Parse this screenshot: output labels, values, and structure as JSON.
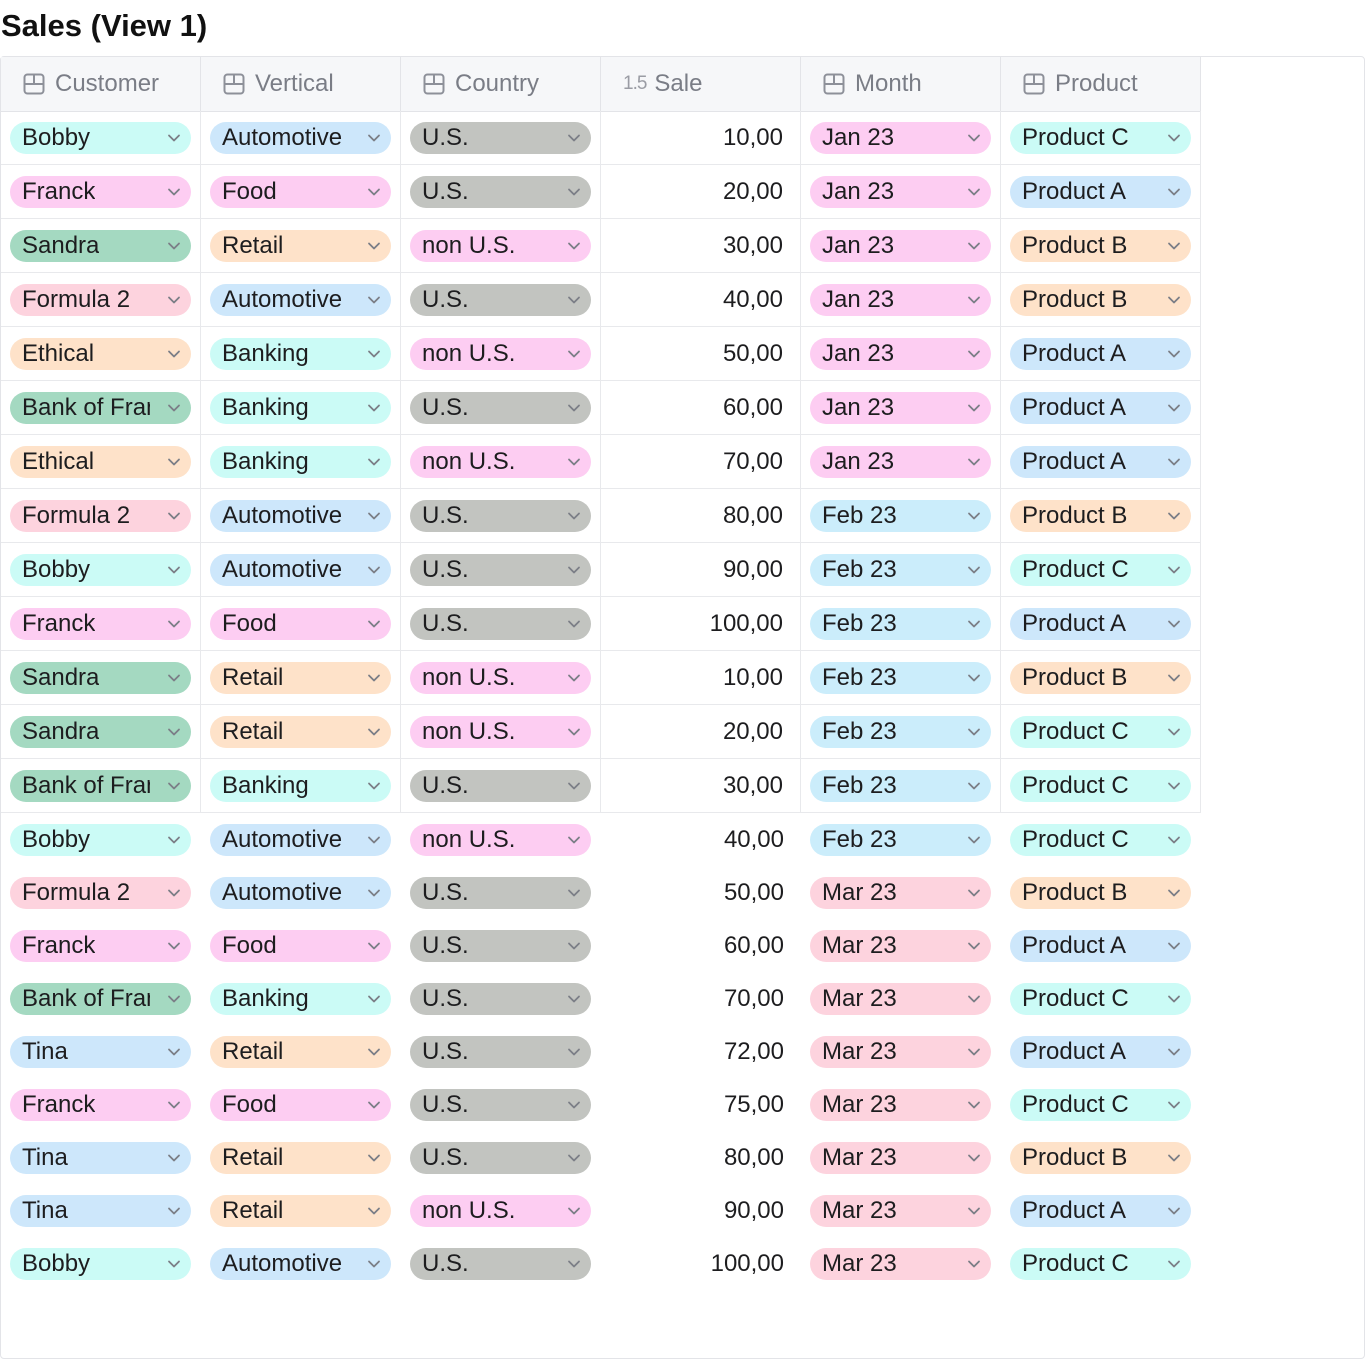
{
  "title": "Sales (View 1)",
  "columns": [
    {
      "label": "Customer",
      "icon": "select-column-icon"
    },
    {
      "label": "Vertical",
      "icon": "select-column-icon"
    },
    {
      "label": "Country",
      "icon": "select-column-icon"
    },
    {
      "label": "Sale",
      "icon": "numeric-column-icon",
      "icon_text": "1.5"
    },
    {
      "label": "Month",
      "icon": "select-column-icon"
    },
    {
      "label": "Product",
      "icon": "select-column-icon"
    }
  ],
  "colors": {
    "Bobby": "#cbfbf6",
    "Franck": "#fdcdf2",
    "Sandra": "#a4d9c1",
    "Formula 2": "#fdd3de",
    "Ethical": "#fee2c9",
    "Bank of France": "#a4d9c1",
    "Tina": "#cde7fb",
    "Automotive": "#cde7fb",
    "Food": "#fdcdf2",
    "Retail": "#fee2c9",
    "Banking": "#cbfbf6",
    "U.S.": "#c2c4c0",
    "non U.S.": "#fdcdf2",
    "Jan 23": "#fdcdf2",
    "Feb 23": "#cbedfb",
    "Mar 23": "#fdd3de",
    "Product A": "#cde7fb",
    "Product B": "#fee2c9",
    "Product C": "#cbfbf6"
  },
  "rows": [
    {
      "customer": "Bobby",
      "vertical": "Automotive",
      "country": "U.S.",
      "sale": "10,00",
      "month": "Jan 23",
      "product": "Product C"
    },
    {
      "customer": "Franck",
      "vertical": "Food",
      "country": "U.S.",
      "sale": "20,00",
      "month": "Jan 23",
      "product": "Product A"
    },
    {
      "customer": "Sandra",
      "vertical": "Retail",
      "country": "non U.S.",
      "sale": "30,00",
      "month": "Jan 23",
      "product": "Product B"
    },
    {
      "customer": "Formula 2",
      "vertical": "Automotive",
      "country": "U.S.",
      "sale": "40,00",
      "month": "Jan 23",
      "product": "Product B"
    },
    {
      "customer": "Ethical",
      "vertical": "Banking",
      "country": "non U.S.",
      "sale": "50,00",
      "month": "Jan 23",
      "product": "Product A"
    },
    {
      "customer": "Bank of France",
      "vertical": "Banking",
      "country": "U.S.",
      "sale": "60,00",
      "month": "Jan 23",
      "product": "Product A"
    },
    {
      "customer": "Ethical",
      "vertical": "Banking",
      "country": "non U.S.",
      "sale": "70,00",
      "month": "Jan 23",
      "product": "Product A"
    },
    {
      "customer": "Formula 2",
      "vertical": "Automotive",
      "country": "U.S.",
      "sale": "80,00",
      "month": "Feb 23",
      "product": "Product B"
    },
    {
      "customer": "Bobby",
      "vertical": "Automotive",
      "country": "U.S.",
      "sale": "90,00",
      "month": "Feb 23",
      "product": "Product C"
    },
    {
      "customer": "Franck",
      "vertical": "Food",
      "country": "U.S.",
      "sale": "100,00",
      "month": "Feb 23",
      "product": "Product A"
    },
    {
      "customer": "Sandra",
      "vertical": "Retail",
      "country": "non U.S.",
      "sale": "10,00",
      "month": "Feb 23",
      "product": "Product B"
    },
    {
      "customer": "Sandra",
      "vertical": "Retail",
      "country": "non U.S.",
      "sale": "20,00",
      "month": "Feb 23",
      "product": "Product C"
    },
    {
      "customer": "Bank of France",
      "vertical": "Banking",
      "country": "U.S.",
      "sale": "30,00",
      "month": "Feb 23",
      "product": "Product C"
    },
    {
      "customer": "Bobby",
      "vertical": "Automotive",
      "country": "non U.S.",
      "sale": "40,00",
      "month": "Feb 23",
      "product": "Product C"
    },
    {
      "customer": "Formula 2",
      "vertical": "Automotive",
      "country": "U.S.",
      "sale": "50,00",
      "month": "Mar 23",
      "product": "Product B"
    },
    {
      "customer": "Franck",
      "vertical": "Food",
      "country": "U.S.",
      "sale": "60,00",
      "month": "Mar 23",
      "product": "Product A"
    },
    {
      "customer": "Bank of France",
      "vertical": "Banking",
      "country": "U.S.",
      "sale": "70,00",
      "month": "Mar 23",
      "product": "Product C"
    },
    {
      "customer": "Tina",
      "vertical": "Retail",
      "country": "U.S.",
      "sale": "72,00",
      "month": "Mar 23",
      "product": "Product A"
    },
    {
      "customer": "Franck",
      "vertical": "Food",
      "country": "U.S.",
      "sale": "75,00",
      "month": "Mar 23",
      "product": "Product C"
    },
    {
      "customer": "Tina",
      "vertical": "Retail",
      "country": "U.S.",
      "sale": "80,00",
      "month": "Mar 23",
      "product": "Product B"
    },
    {
      "customer": "Tina",
      "vertical": "Retail",
      "country": "non U.S.",
      "sale": "90,00",
      "month": "Mar 23",
      "product": "Product A"
    },
    {
      "customer": "Bobby",
      "vertical": "Automotive",
      "country": "U.S.",
      "sale": "100,00",
      "month": "Mar 23",
      "product": "Product C"
    }
  ]
}
